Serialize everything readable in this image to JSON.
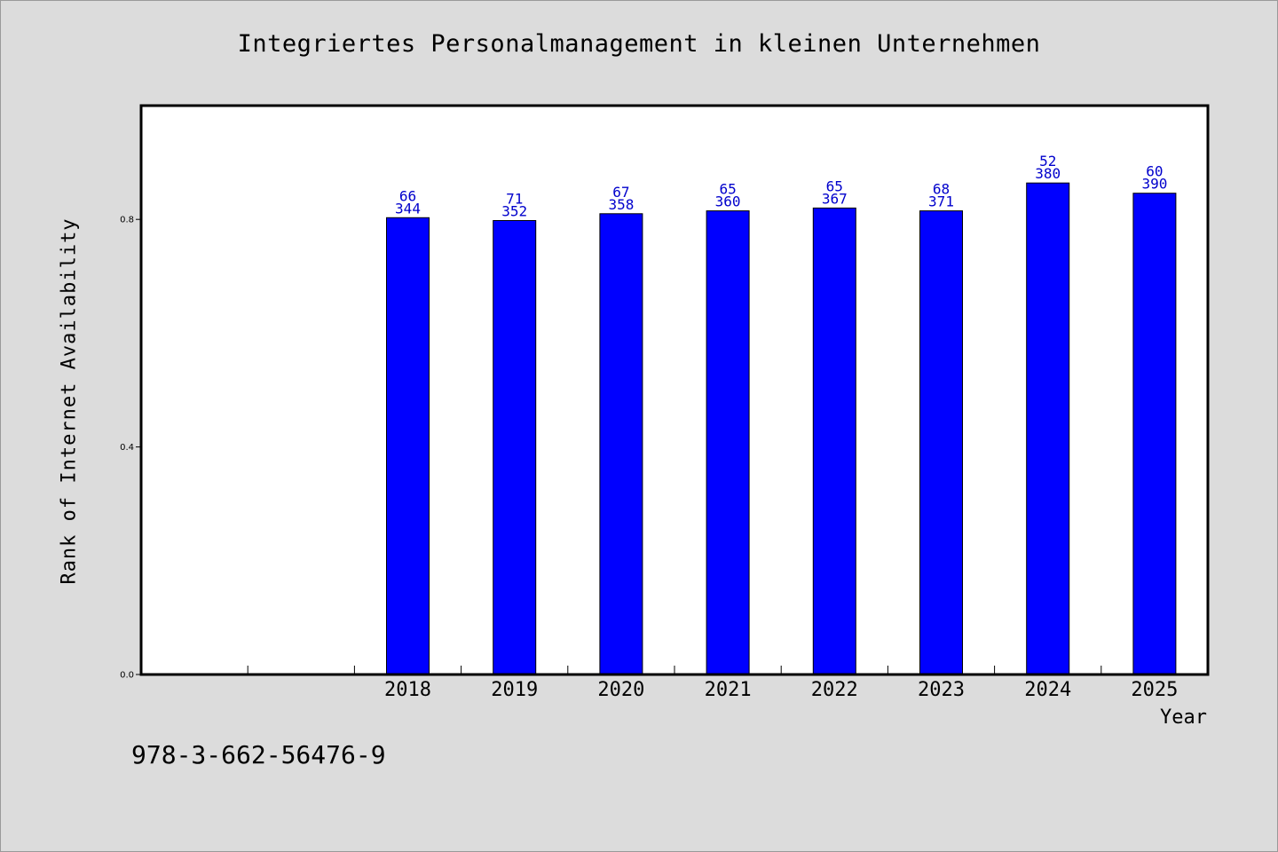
{
  "title": "Integriertes Personalmanagement in kleinen Unternehmen",
  "isbn": "978-3-662-56476-9",
  "chart_data": {
    "type": "bar",
    "title": "Integriertes Personalmanagement in kleinen Unternehmen",
    "xlabel": "Year",
    "ylabel": "Rank of Internet Availability",
    "ylim": [
      0,
      1.0
    ],
    "yticks": [
      "0.0",
      "0.4",
      "0.8"
    ],
    "categories": [
      "2018",
      "2019",
      "2020",
      "2021",
      "2022",
      "2023",
      "2024",
      "2025"
    ],
    "values": [
      0.803,
      0.798,
      0.81,
      0.815,
      0.82,
      0.815,
      0.864,
      0.846
    ],
    "label_top": [
      "66",
      "71",
      "67",
      "65",
      "65",
      "68",
      "52",
      "60"
    ],
    "label_bottom": [
      "344",
      "352",
      "358",
      "360",
      "367",
      "371",
      "380",
      "390"
    ],
    "bar_color": "#0000ff",
    "label_color": "#0000cc",
    "grid": false
  }
}
